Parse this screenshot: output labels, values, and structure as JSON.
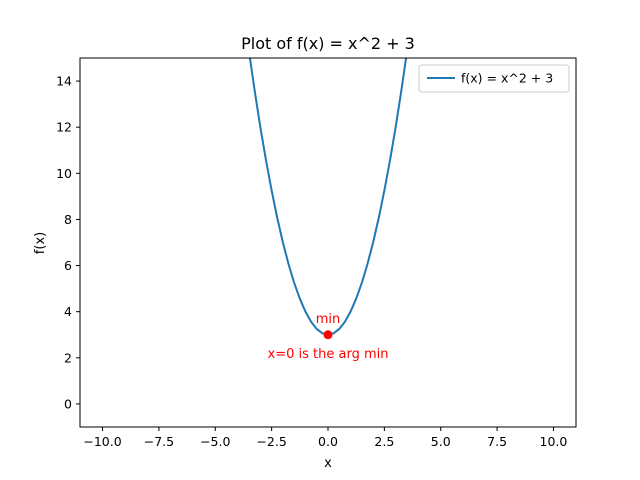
{
  "chart_data": {
    "type": "line",
    "title": "Plot of f(x) = x^2 + 3",
    "xlabel": "x",
    "ylabel": "f(x)",
    "xlim": [
      -11,
      11
    ],
    "ylim": [
      -1,
      15
    ],
    "x_ticks": [
      -10,
      -7.5,
      -5,
      -2.5,
      0,
      2.5,
      5,
      7.5,
      10
    ],
    "x_tick_labels": [
      "−10.0",
      "−7.5",
      "−5.0",
      "−2.5",
      "0.0",
      "2.5",
      "5.0",
      "7.5",
      "10.0"
    ],
    "y_ticks": [
      0,
      2,
      4,
      6,
      8,
      10,
      12,
      14
    ],
    "y_tick_labels": [
      "0",
      "2",
      "4",
      "6",
      "8",
      "10",
      "12",
      "14"
    ],
    "grid": false,
    "legend": {
      "position": "top-right"
    },
    "series": [
      {
        "name": "f(x) = x^2 + 3",
        "color": "#1f77b4",
        "x": [
          -3.5,
          -3.25,
          -3.0,
          -2.75,
          -2.5,
          -2.25,
          -2.0,
          -1.75,
          -1.5,
          -1.25,
          -1.0,
          -0.75,
          -0.5,
          -0.25,
          0.0,
          0.25,
          0.5,
          0.75,
          1.0,
          1.25,
          1.5,
          1.75,
          2.0,
          2.25,
          2.5,
          2.75,
          3.0,
          3.25,
          3.5
        ],
        "y": [
          15.25,
          13.5625,
          12.0,
          10.5625,
          9.25,
          8.0625,
          7.0,
          6.0625,
          5.25,
          4.5625,
          4.0,
          3.5625,
          3.25,
          3.0625,
          3.0,
          3.0625,
          3.25,
          3.5625,
          4.0,
          4.5625,
          5.25,
          6.0625,
          7.0,
          8.0625,
          9.25,
          10.5625,
          12.0,
          13.5625,
          15.25
        ]
      }
    ],
    "points": [
      {
        "x": 0,
        "y": 3,
        "color": "#ff0000"
      }
    ],
    "annotations": [
      {
        "text": "min",
        "x": 0,
        "y": 3,
        "placement": "above",
        "color": "#ff0000"
      },
      {
        "text": "x=0 is the arg min",
        "x": 0,
        "y": 3,
        "placement": "below",
        "color": "#ff0000"
      }
    ]
  }
}
